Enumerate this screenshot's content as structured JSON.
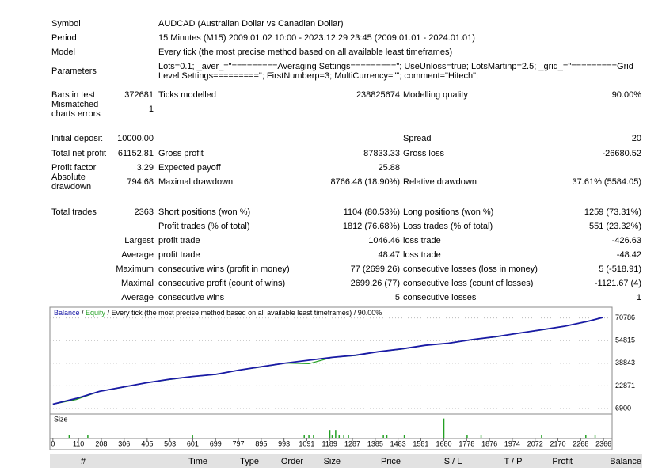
{
  "header": [
    {
      "label": "Symbol",
      "value": "AUDCAD (Australian Dollar vs Canadian Dollar)"
    },
    {
      "label": "Period",
      "value": "15 Minutes (M15) 2009.01.02 10:00 - 2023.12.29 23:45 (2009.01.01 - 2024.01.01)"
    },
    {
      "label": "Model",
      "value": "Every tick (the most precise method based on all available least timeframes)"
    },
    {
      "label": "Parameters",
      "value": "Lots=0.1; _aver_=\"=========Averaging Settings=========\"; UseUnloss=true; LotsMartinp=2.5; _grid_=\"=========Grid Level Settings=========\"; FirstNumberp=3; MultiCurrency=\"\"; comment=\"Hitech\";"
    }
  ],
  "stats": [
    [
      "Bars in test",
      "372681",
      "Ticks modelled",
      "238825674",
      "Modelling quality",
      "90.00%"
    ],
    [
      "Mismatched charts errors",
      "1",
      null,
      null,
      null,
      null
    ],
    [
      "Initial deposit",
      "10000.00",
      null,
      null,
      "Spread",
      "20"
    ],
    [
      "Total net profit",
      "61152.81",
      "Gross profit",
      "87833.33",
      "Gross loss",
      "-26680.52"
    ],
    [
      "Profit factor",
      "3.29",
      "Expected payoff",
      "25.88",
      null,
      null
    ],
    [
      "Absolute drawdown",
      "794.68",
      "Maximal drawdown",
      "8766.48 (18.90%)",
      "Relative drawdown",
      "37.61% (5584.05)"
    ],
    [
      "Total trades",
      "2363",
      "Short positions (won %)",
      "1104 (80.53%)",
      "Long positions (won %)",
      "1259 (73.31%)"
    ],
    [
      null,
      null,
      "Profit trades (% of total)",
      "1812 (76.68%)",
      "Loss trades (% of total)",
      "551 (23.32%)"
    ],
    [
      null,
      "Largest",
      "profit trade",
      "1046.46",
      "loss trade",
      "-426.63"
    ],
    [
      null,
      "Average",
      "profit trade",
      "48.47",
      "loss trade",
      "-48.42"
    ],
    [
      null,
      "Maximum",
      "consecutive wins (profit in money)",
      "77 (2699.26)",
      "consecutive losses (loss in money)",
      "5 (-518.91)"
    ],
    [
      null,
      "Maximal",
      "consecutive profit (count of wins)",
      "2699.26 (77)",
      "consecutive loss (count of losses)",
      "-1121.67 (4)"
    ],
    [
      null,
      "Average",
      "consecutive wins",
      "5",
      "consecutive losses",
      "1"
    ]
  ],
  "graph": {
    "type": "line",
    "separator": " / ",
    "caption": "Every tick (the most precise method based on all available least timeframes) / 90.00%",
    "x": [
      0,
      100,
      200,
      300,
      400,
      500,
      600,
      700,
      800,
      900,
      1000,
      1100,
      1200,
      1300,
      1400,
      1500,
      1600,
      1700,
      1800,
      1900,
      2000,
      2100,
      2200,
      2300,
      2363
    ],
    "series": [
      {
        "name": "Balance",
        "color": "#1a1aa6",
        "values": [
          10000,
          14000,
          19000,
          22000,
          25000,
          27500,
          29500,
          31000,
          34000,
          36500,
          39000,
          41000,
          43000,
          44500,
          47000,
          49000,
          51500,
          53000,
          55500,
          57500,
          60000,
          62500,
          65000,
          68500,
          71152
        ]
      },
      {
        "name": "Equity",
        "color": "#22a022",
        "values": [
          10000,
          13200,
          19000,
          21800,
          25000,
          27300,
          29500,
          30800,
          34000,
          36300,
          39000,
          38500,
          43000,
          44300,
          47000,
          48800,
          51500,
          52800,
          55500,
          57300,
          60000,
          62300,
          65000,
          68300,
          71152
        ]
      }
    ],
    "xlim": [
      -13,
      2403
    ],
    "ylim": [
      5800,
      78400
    ],
    "yticks": [
      70786,
      54815,
      38843,
      22871,
      6900
    ],
    "xticks": [
      0,
      110,
      208,
      306,
      405,
      503,
      601,
      699,
      797,
      895,
      993,
      1091,
      1189,
      1287,
      1385,
      1483,
      1581,
      1680,
      1778,
      1876,
      1974,
      2072,
      2170,
      2268,
      2366
    ],
    "size": {
      "label": "Size",
      "color": "#22a022",
      "x": [
        70,
        150,
        600,
        1080,
        1100,
        1120,
        1190,
        1200,
        1215,
        1230,
        1250,
        1270,
        1420,
        1435,
        1510,
        1680,
        1780,
        1840,
        2100,
        2290,
        2330
      ],
      "values": [
        0.25,
        0.25,
        0.25,
        0.25,
        0.25,
        0.25,
        0.63,
        0.25,
        0.63,
        0.25,
        0.25,
        0.25,
        0.25,
        0.25,
        0.25,
        1.56,
        0.25,
        0.25,
        0.25,
        0.25,
        0.25
      ],
      "ylim": [
        0,
        1.6
      ]
    }
  },
  "table": {
    "columns": [
      "#",
      "Time",
      "Type",
      "Order",
      "Size",
      "Price",
      "S / L",
      "T / P",
      "Profit",
      "Balance"
    ]
  }
}
